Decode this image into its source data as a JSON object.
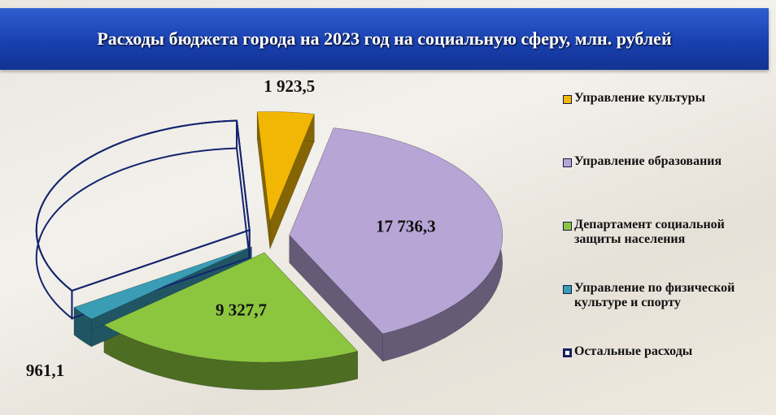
{
  "chart_data": {
    "type": "pie",
    "title": "Расходы бюджета города на 2023 год на социальную сферу, млн. рублей",
    "categories": [
      "Управление культуры",
      "Управление образования",
      "Департамент социальной защиты населения",
      "Управление по физической культуре и спорту",
      "Остальные расходы"
    ],
    "values": [
      1923.5,
      17736.3,
      9327.7,
      961.1,
      15000
    ],
    "value_labels": [
      "1 923,5",
      "17 736,3",
      "9 327,7",
      "961,1",
      null
    ],
    "colors": [
      "#f2b705",
      "#b7a5d6",
      "#8cc63f",
      "#3a9db5",
      "#14246e"
    ],
    "hollow": [
      false,
      false,
      false,
      false,
      true
    ],
    "legend": "right"
  }
}
